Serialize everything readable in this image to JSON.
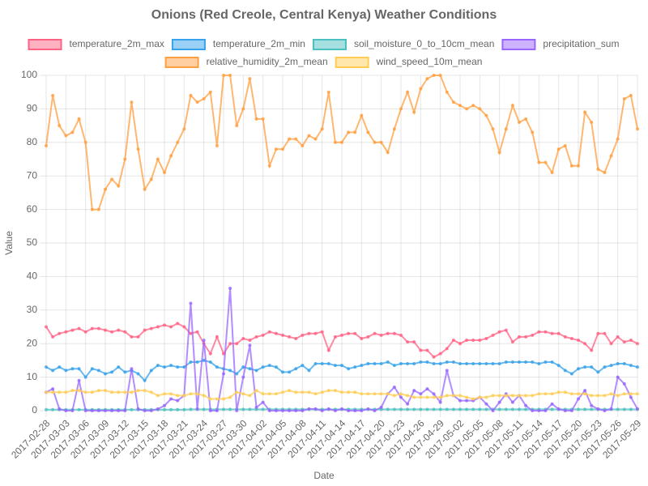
{
  "chart_data": {
    "type": "line",
    "title": "Onions (Red Creole, Central Kenya) Weather Conditions",
    "x_label": "Date",
    "y_label": "Value",
    "ylim": [
      0,
      100
    ],
    "yticks": [
      0,
      10,
      20,
      30,
      40,
      50,
      60,
      70,
      80,
      90,
      100
    ],
    "grid": true,
    "legend": "top",
    "categories": [
      "2017-02-28",
      null,
      null,
      "2017-03-03",
      null,
      null,
      "2017-03-06",
      null,
      null,
      "2017-03-09",
      null,
      null,
      "2017-03-12",
      null,
      null,
      "2017-03-15",
      null,
      null,
      "2017-03-18",
      null,
      null,
      "2017-03-21",
      null,
      null,
      "2017-03-24",
      null,
      null,
      "2017-03-27",
      null,
      null,
      "2017-03-30",
      null,
      null,
      "2017-04-02",
      null,
      null,
      "2017-04-05",
      null,
      null,
      "2017-04-08",
      null,
      null,
      "2017-04-11",
      null,
      null,
      "2017-04-14",
      null,
      null,
      "2017-04-17",
      null,
      null,
      "2017-04-20",
      null,
      null,
      "2017-04-23",
      null,
      null,
      "2017-04-26",
      null,
      null,
      "2017-04-29",
      null,
      null,
      "2017-05-02",
      null,
      null,
      "2017-05-05",
      null,
      null,
      "2017-05-08",
      null,
      null,
      "2017-05-11",
      null,
      null,
      "2017-05-14",
      null,
      null,
      "2017-05-17",
      null,
      null,
      "2017-05-20",
      null,
      null,
      "2017-05-23",
      null,
      null,
      "2017-05-26",
      null,
      null,
      "2017-05-29"
    ],
    "series": [
      {
        "name": "temperature_2m_max",
        "color": "#ff6384",
        "values": [
          25,
          22,
          23,
          23.5,
          24,
          24.5,
          23.5,
          24.5,
          24.5,
          24,
          23.5,
          24,
          23.5,
          22,
          22,
          24,
          24.5,
          25,
          25.5,
          25,
          26,
          25,
          23,
          23.5,
          20,
          17,
          22,
          17,
          20,
          20,
          21.5,
          21,
          22,
          22.5,
          23.5,
          23,
          22.5,
          22,
          21.5,
          22.5,
          23,
          23,
          23.5,
          18,
          22,
          22.5,
          23,
          23,
          21.5,
          22,
          23,
          22.5,
          23,
          23,
          22.5,
          20.5,
          20.5,
          18,
          18,
          16,
          17,
          18.5,
          21,
          20,
          21,
          21,
          21,
          21.5,
          22.5,
          23.5,
          24,
          20.5,
          22,
          22,
          22.5,
          23.5,
          23.5,
          23,
          23,
          22,
          21.5,
          21,
          20,
          18,
          23,
          23,
          20,
          22,
          20.5,
          21,
          20
        ]
      },
      {
        "name": "temperature_2m_min",
        "color": "#36a2eb",
        "values": [
          13,
          12,
          13,
          12,
          12.5,
          12.5,
          10,
          12.5,
          12,
          11,
          11.5,
          13,
          11.5,
          12,
          11,
          9,
          12,
          13.5,
          13,
          13.5,
          13,
          13,
          14.5,
          14.5,
          15,
          14.5,
          13,
          12.5,
          12,
          11,
          13,
          12.5,
          12,
          13,
          13.5,
          13,
          11.5,
          11.5,
          12.5,
          13.5,
          12,
          14,
          14,
          14,
          13.5,
          13.5,
          12.5,
          13,
          13.5,
          14,
          14,
          14,
          14.5,
          13.5,
          14,
          14,
          14,
          14.5,
          14.5,
          14,
          14,
          14.5,
          14.5,
          14,
          14,
          14,
          14,
          14,
          14,
          14,
          14.5,
          14.5,
          14.5,
          14.5,
          14.5,
          14,
          14.5,
          14.5,
          13.5,
          12,
          11,
          12.5,
          13,
          13,
          11.5,
          13,
          13.5,
          14,
          14,
          13.5,
          13
        ]
      },
      {
        "name": "soil_moisture_0_to_10cm_mean",
        "color": "#4bc0c0",
        "values": [
          0.3,
          0.3,
          0.3,
          0.3,
          0.3,
          0.3,
          0.3,
          0.3,
          0.3,
          0.3,
          0.3,
          0.3,
          0.3,
          0.3,
          0.3,
          0.3,
          0.3,
          0.3,
          0.3,
          0.3,
          0.3,
          0.3,
          0.4,
          0.4,
          0.4,
          0.4,
          0.4,
          0.4,
          0.4,
          0.4,
          0.4,
          0.4,
          0.4,
          0.4,
          0.4,
          0.4,
          0.4,
          0.4,
          0.4,
          0.4,
          0.4,
          0.4,
          0.4,
          0.4,
          0.4,
          0.4,
          0.4,
          0.4,
          0.4,
          0.4,
          0.4,
          0.4,
          0.4,
          0.4,
          0.4,
          0.4,
          0.4,
          0.4,
          0.4,
          0.4,
          0.4,
          0.4,
          0.4,
          0.4,
          0.4,
          0.4,
          0.4,
          0.4,
          0.4,
          0.4,
          0.4,
          0.4,
          0.4,
          0.4,
          0.4,
          0.4,
          0.4,
          0.4,
          0.4,
          0.4,
          0.4,
          0.4,
          0.4,
          0.4,
          0.4,
          0.4,
          0.4,
          0.4,
          0.4,
          0.4,
          0.4
        ]
      },
      {
        "name": "precipitation_sum",
        "color": "#9966ff",
        "values": [
          5.5,
          6.5,
          0.5,
          0,
          0,
          9,
          0,
          0,
          0,
          0,
          0,
          0,
          0,
          12.5,
          0.5,
          0,
          0,
          0.5,
          1.5,
          3.5,
          3,
          4.5,
          32,
          0.5,
          21,
          0,
          0,
          11,
          36.5,
          0,
          10,
          19.5,
          1,
          2.5,
          0,
          0,
          0,
          0,
          0,
          0,
          0.5,
          0.5,
          0,
          0.5,
          0,
          0.5,
          0,
          0,
          0,
          0.5,
          0,
          1,
          5,
          7,
          4,
          2,
          6,
          5,
          6.5,
          5,
          2.5,
          12,
          4.5,
          3,
          3,
          3,
          4,
          2,
          0,
          2.5,
          5,
          2.5,
          4.5,
          1.5,
          0,
          0,
          0,
          2,
          0.5,
          0,
          0,
          3.5,
          6,
          1.5,
          0.5,
          0,
          0.5,
          10,
          8,
          4,
          0.5
        ]
      },
      {
        "name": "relative_humidity_2m_mean",
        "color": "#ff9f40",
        "values": [
          79,
          94,
          85,
          82,
          83,
          87,
          80,
          60,
          60,
          66,
          69,
          67,
          75,
          92,
          78,
          66,
          69,
          75,
          71,
          76,
          80,
          84,
          94,
          92,
          93,
          95,
          79,
          100,
          100,
          85,
          90,
          99,
          87,
          87,
          73,
          78,
          78,
          81,
          81,
          79,
          82,
          81,
          84,
          95,
          80,
          80,
          83,
          83,
          88,
          83,
          80,
          80,
          77,
          84,
          90,
          95,
          89,
          96,
          99,
          100,
          100,
          95,
          92,
          91,
          90,
          91,
          90,
          88,
          84,
          77,
          84,
          91,
          86,
          87,
          83,
          74,
          74,
          71,
          78,
          79,
          73,
          73,
          89,
          86,
          72,
          71,
          76,
          81,
          93,
          94,
          84
        ]
      },
      {
        "name": "wind_speed_10m_mean",
        "color": "#ffcd56",
        "values": [
          5.5,
          5.5,
          5.5,
          5.5,
          6,
          6,
          5.5,
          5.5,
          6,
          6,
          5.5,
          5.5,
          5.5,
          5.5,
          6,
          6,
          5.5,
          4.5,
          5,
          5,
          4.5,
          4.5,
          5,
          5,
          4.5,
          3.5,
          3.5,
          3.5,
          4,
          5.5,
          5,
          4.5,
          6,
          5,
          5,
          5,
          5.5,
          6,
          5.5,
          5.5,
          5.5,
          5,
          5.5,
          6,
          6,
          5.5,
          5.5,
          5.5,
          5,
          5,
          5,
          5,
          5,
          4.5,
          5,
          4.5,
          4,
          4,
          4,
          4,
          4,
          4.5,
          4.5,
          4.5,
          4,
          3.5,
          4,
          4,
          4.5,
          4.5,
          4.5,
          4.5,
          4.5,
          4.5,
          4.5,
          5,
          5,
          5,
          5.5,
          5.5,
          5,
          5,
          5,
          4.5,
          4.5,
          4.5,
          5,
          4.5,
          5,
          5,
          5
        ]
      }
    ]
  }
}
